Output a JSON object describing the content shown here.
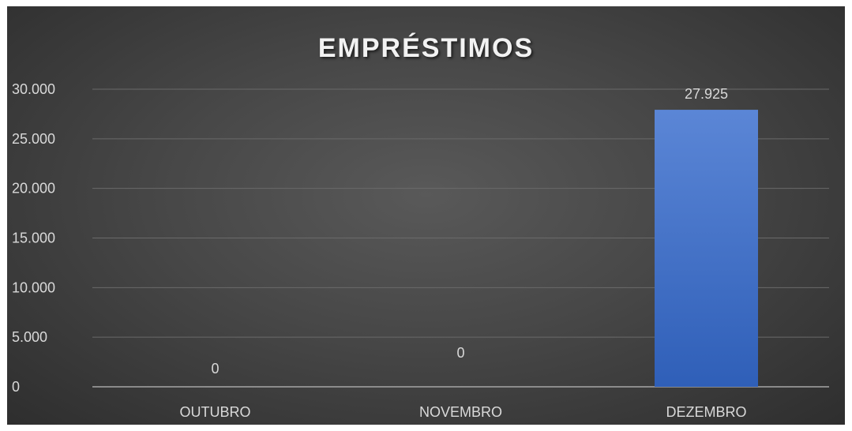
{
  "chart_data": {
    "type": "bar",
    "title": "EMPRÉSTIMOS",
    "categories": [
      "OUTUBRO",
      "NOVEMBRO",
      "DEZEMBRO"
    ],
    "values": [
      0,
      0,
      27925
    ],
    "data_labels": [
      "0",
      "0",
      "27.925"
    ],
    "ylim": [
      0,
      30000
    ],
    "y_ticks": [
      0,
      5000,
      10000,
      15000,
      20000,
      25000,
      30000
    ],
    "y_tick_labels": [
      "0",
      "5.000",
      "10.000",
      "15.000",
      "20.000",
      "25.000",
      "30.000"
    ],
    "xlabel": "",
    "ylabel": "",
    "grid": true,
    "legend": "none",
    "bar_color": "#4472c4",
    "background_color": "#404040"
  }
}
